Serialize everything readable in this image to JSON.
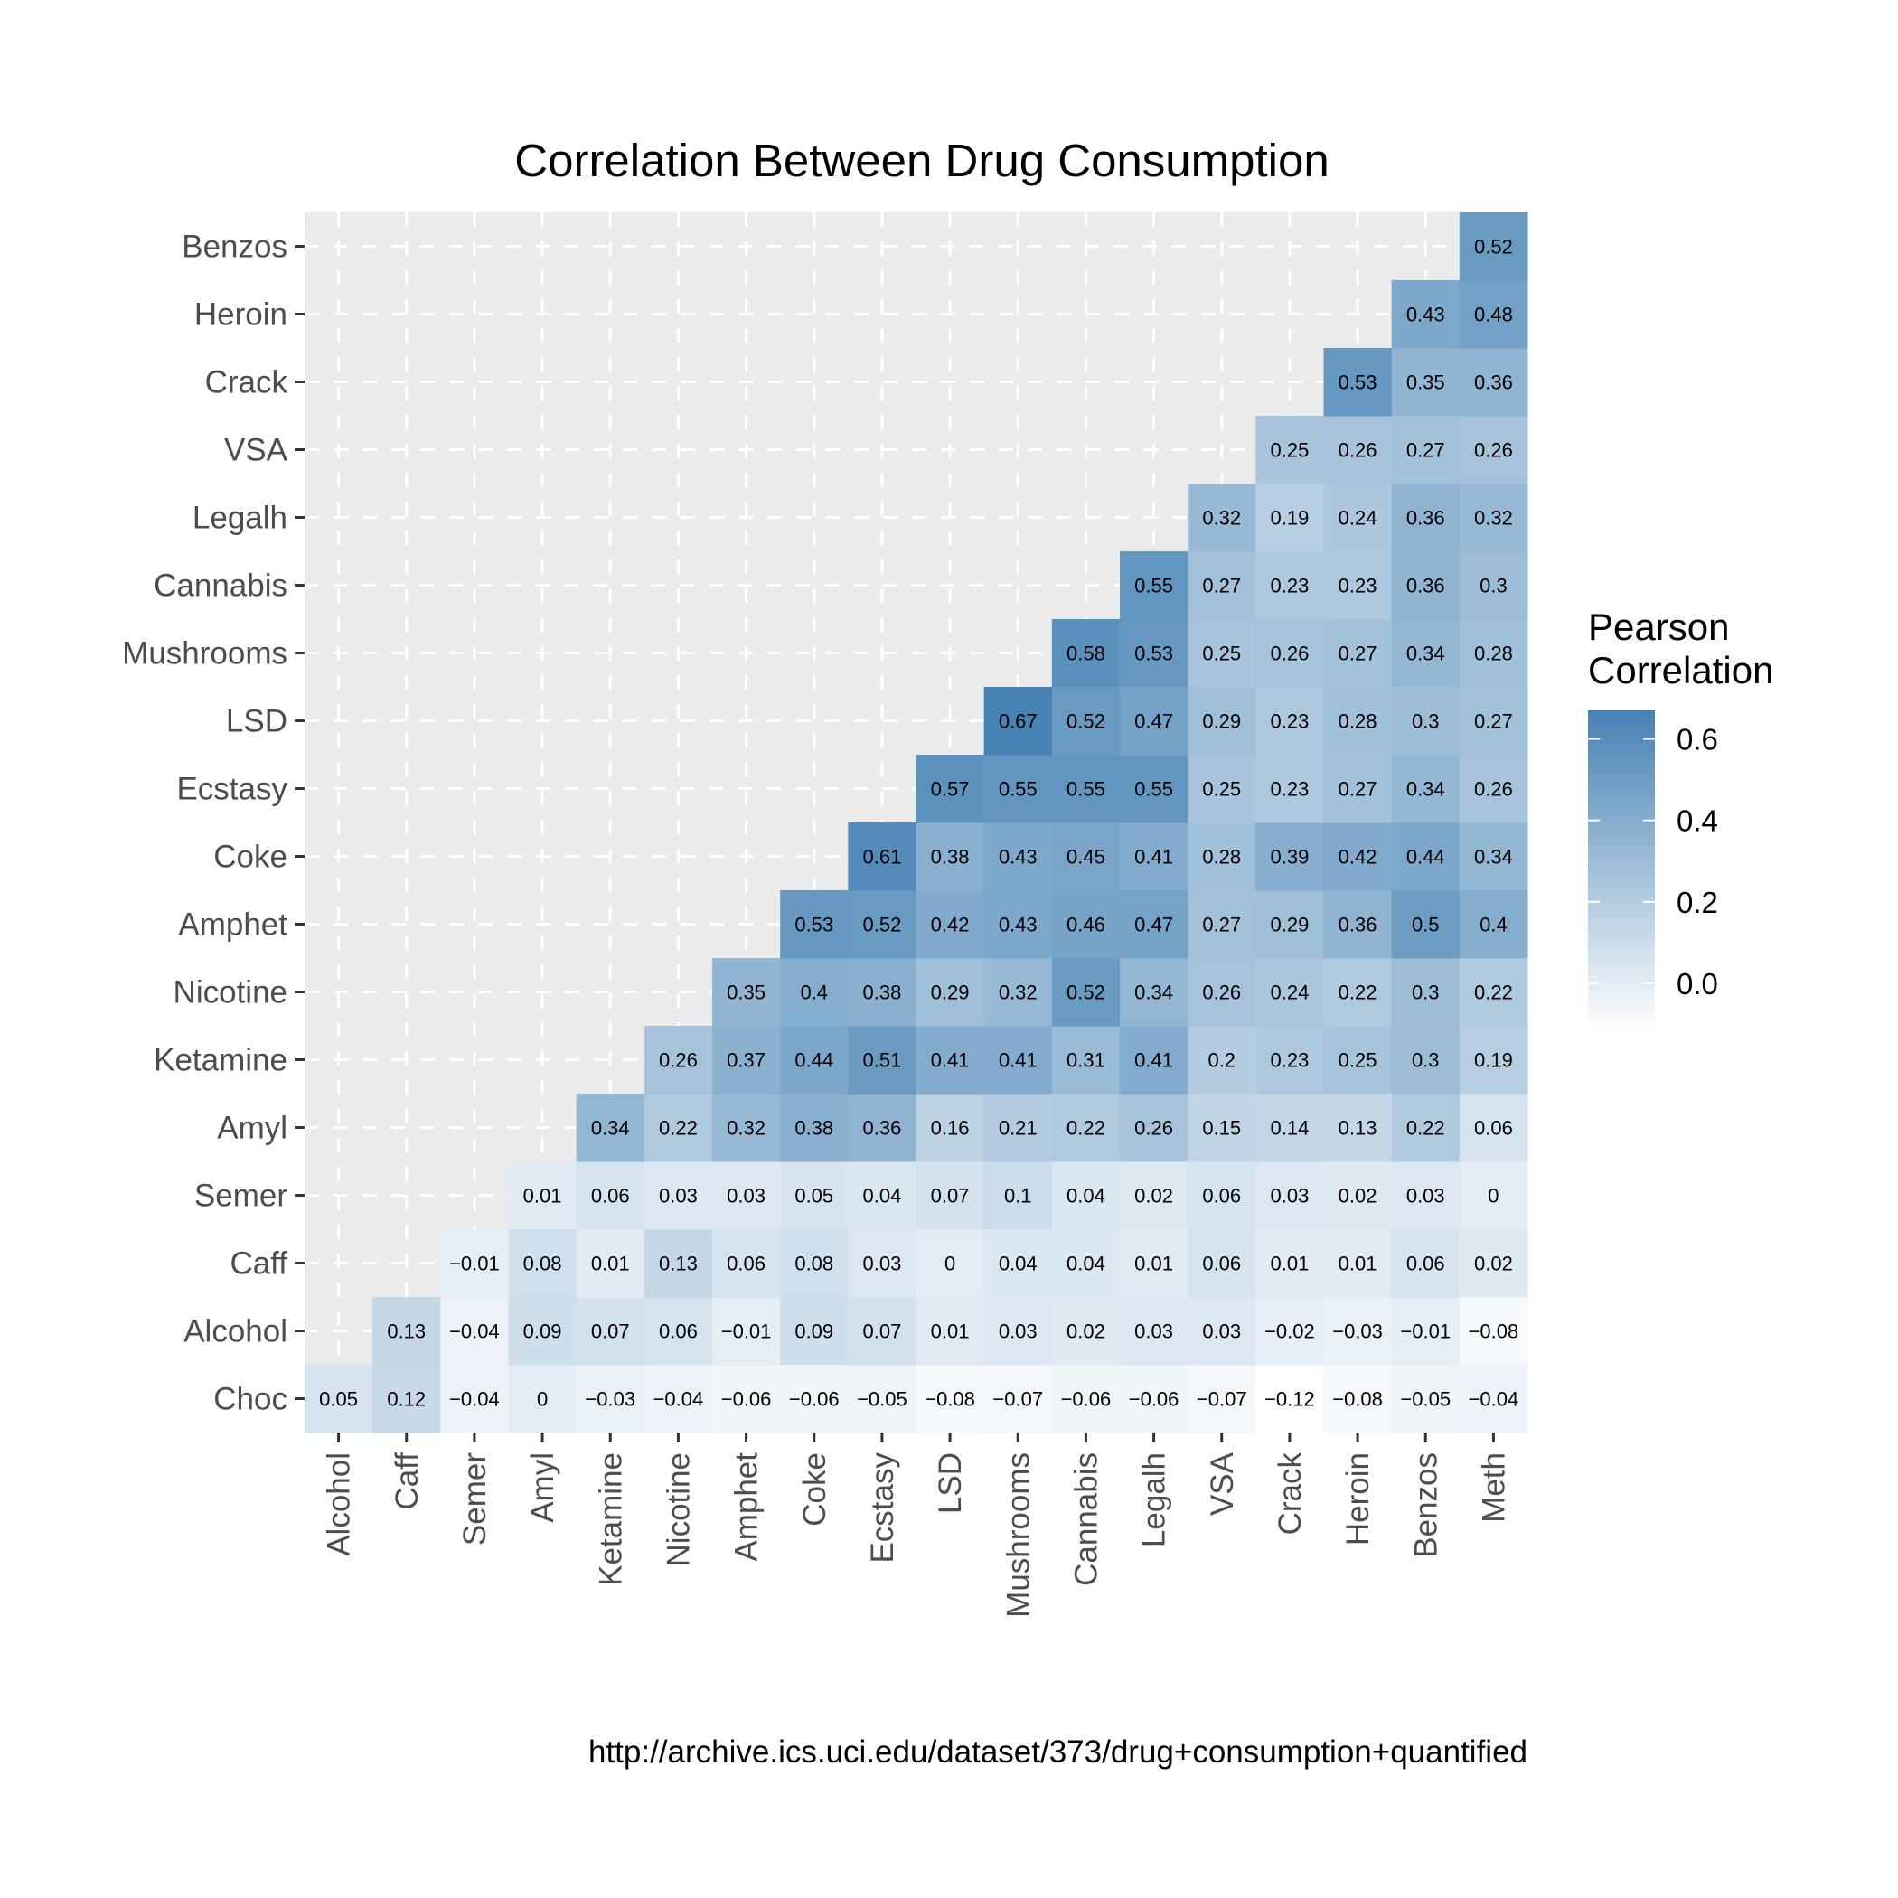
{
  "chart_data": {
    "type": "heatmap",
    "title": "Correlation Between Drug Consumption",
    "x_categories": [
      "Alcohol",
      "Caff",
      "Semer",
      "Amyl",
      "Ketamine",
      "Nicotine",
      "Amphet",
      "Coke",
      "Ecstasy",
      "LSD",
      "Mushrooms",
      "Cannabis",
      "Legalh",
      "VSA",
      "Crack",
      "Heroin",
      "Benzos",
      "Meth"
    ],
    "y_categories": [
      "Choc",
      "Alcohol",
      "Caff",
      "Semer",
      "Amyl",
      "Ketamine",
      "Nicotine",
      "Amphet",
      "Coke",
      "Ecstasy",
      "LSD",
      "Mushrooms",
      "Cannabis",
      "Legalh",
      "VSA",
      "Crack",
      "Heroin",
      "Benzos"
    ],
    "values": [
      [
        "0.05",
        "0.12",
        "−0.04",
        "0",
        "−0.03",
        "−0.04",
        "−0.06",
        "−0.06",
        "−0.05",
        "−0.08",
        "−0.07",
        "−0.06",
        "−0.06",
        "−0.07",
        "−0.12",
        "−0.08",
        "−0.05",
        "−0.04"
      ],
      [
        null,
        "0.13",
        "−0.04",
        "0.09",
        "0.07",
        "0.06",
        "−0.01",
        "0.09",
        "0.07",
        "0.01",
        "0.03",
        "0.02",
        "0.03",
        "0.03",
        "−0.02",
        "−0.03",
        "−0.01",
        "−0.08"
      ],
      [
        null,
        null,
        "−0.01",
        "0.08",
        "0.01",
        "0.13",
        "0.06",
        "0.08",
        "0.03",
        "0",
        "0.04",
        "0.04",
        "0.01",
        "0.06",
        "0.01",
        "0.01",
        "0.06",
        "0.02"
      ],
      [
        null,
        null,
        null,
        "0.01",
        "0.06",
        "0.03",
        "0.03",
        "0.05",
        "0.04",
        "0.07",
        "0.1",
        "0.04",
        "0.02",
        "0.06",
        "0.03",
        "0.02",
        "0.03",
        "0"
      ],
      [
        null,
        null,
        null,
        null,
        "0.34",
        "0.22",
        "0.32",
        "0.38",
        "0.36",
        "0.16",
        "0.21",
        "0.22",
        "0.26",
        "0.15",
        "0.14",
        "0.13",
        "0.22",
        "0.06"
      ],
      [
        null,
        null,
        null,
        null,
        null,
        "0.26",
        "0.37",
        "0.44",
        "0.51",
        "0.41",
        "0.41",
        "0.31",
        "0.41",
        "0.2",
        "0.23",
        "0.25",
        "0.3",
        "0.19"
      ],
      [
        null,
        null,
        null,
        null,
        null,
        null,
        "0.35",
        "0.4",
        "0.38",
        "0.29",
        "0.32",
        "0.52",
        "0.34",
        "0.26",
        "0.24",
        "0.22",
        "0.3",
        "0.22"
      ],
      [
        null,
        null,
        null,
        null,
        null,
        null,
        null,
        "0.53",
        "0.52",
        "0.42",
        "0.43",
        "0.46",
        "0.47",
        "0.27",
        "0.29",
        "0.36",
        "0.5",
        "0.4"
      ],
      [
        null,
        null,
        null,
        null,
        null,
        null,
        null,
        null,
        "0.61",
        "0.38",
        "0.43",
        "0.45",
        "0.41",
        "0.28",
        "0.39",
        "0.42",
        "0.44",
        "0.34"
      ],
      [
        null,
        null,
        null,
        null,
        null,
        null,
        null,
        null,
        null,
        "0.57",
        "0.55",
        "0.55",
        "0.55",
        "0.25",
        "0.23",
        "0.27",
        "0.34",
        "0.26"
      ],
      [
        null,
        null,
        null,
        null,
        null,
        null,
        null,
        null,
        null,
        null,
        "0.67",
        "0.52",
        "0.47",
        "0.29",
        "0.23",
        "0.28",
        "0.3",
        "0.27"
      ],
      [
        null,
        null,
        null,
        null,
        null,
        null,
        null,
        null,
        null,
        null,
        null,
        "0.58",
        "0.53",
        "0.25",
        "0.26",
        "0.27",
        "0.34",
        "0.28"
      ],
      [
        null,
        null,
        null,
        null,
        null,
        null,
        null,
        null,
        null,
        null,
        null,
        null,
        "0.55",
        "0.27",
        "0.23",
        "0.23",
        "0.36",
        "0.3"
      ],
      [
        null,
        null,
        null,
        null,
        null,
        null,
        null,
        null,
        null,
        null,
        null,
        null,
        null,
        "0.32",
        "0.19",
        "0.24",
        "0.36",
        "0.32"
      ],
      [
        null,
        null,
        null,
        null,
        null,
        null,
        null,
        null,
        null,
        null,
        null,
        null,
        null,
        null,
        "0.25",
        "0.26",
        "0.27",
        "0.26"
      ],
      [
        null,
        null,
        null,
        null,
        null,
        null,
        null,
        null,
        null,
        null,
        null,
        null,
        null,
        null,
        null,
        "0.53",
        "0.35",
        "0.36"
      ],
      [
        null,
        null,
        null,
        null,
        null,
        null,
        null,
        null,
        null,
        null,
        null,
        null,
        null,
        null,
        null,
        null,
        "0.43",
        "0.48"
      ],
      [
        null,
        null,
        null,
        null,
        null,
        null,
        null,
        null,
        null,
        null,
        null,
        null,
        null,
        null,
        null,
        null,
        null,
        "0.52"
      ]
    ],
    "legend": {
      "title_lines": [
        "Pearson",
        "Correlation"
      ],
      "ticks": [
        "0.0",
        "0.2",
        "0.4",
        "0.6"
      ],
      "range": [
        -0.12,
        0.67
      ],
      "placement": "right"
    },
    "colors": {
      "low": "#ffffff",
      "high": "#4682b4",
      "panel": "#ebebeb",
      "grid": "#ffffff"
    },
    "grid": "dashed",
    "caption": "http://archive.ics.uci.edu/dataset/373/drug+consumption+quantified"
  }
}
